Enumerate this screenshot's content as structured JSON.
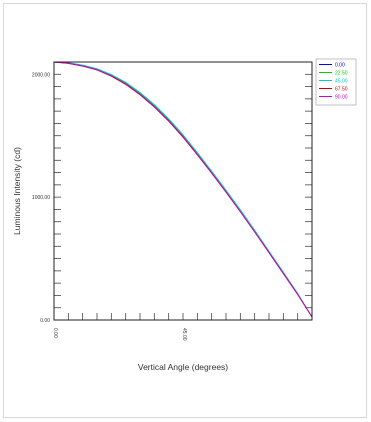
{
  "chart_data": {
    "type": "line",
    "xlabel": "Vertical Angle (degrees)",
    "ylabel": "Luminous Intensity (cd)",
    "xlim": [
      0,
      90
    ],
    "ylim": [
      0,
      2100
    ],
    "x_ticks": [
      "0.00",
      "45.00"
    ],
    "y_ticks": [
      "0.00",
      "1000.00",
      "2000.00"
    ],
    "grid": false,
    "legend_position": "top-right",
    "series": [
      {
        "name": "0.00",
        "color": "#0000ff",
        "x": [
          0,
          5,
          10,
          15,
          20,
          25,
          30,
          35,
          40,
          45,
          50,
          55,
          60,
          65,
          70,
          75,
          80,
          85,
          90
        ],
        "values": [
          2100,
          2090,
          2070,
          2040,
          1990,
          1925,
          1840,
          1740,
          1625,
          1495,
          1350,
          1200,
          1045,
          885,
          720,
          550,
          380,
          210,
          25
        ]
      },
      {
        "name": "22.50",
        "color": "#00cc00",
        "x": [
          0,
          5,
          10,
          15,
          20,
          25,
          30,
          35,
          40,
          45,
          50,
          55,
          60,
          65,
          70,
          75,
          80,
          85,
          90
        ],
        "values": [
          2100,
          2092,
          2072,
          2043,
          1994,
          1930,
          1846,
          1747,
          1632,
          1502,
          1357,
          1207,
          1052,
          892,
          727,
          556,
          386,
          214,
          25
        ]
      },
      {
        "name": "45.00",
        "color": "#00cccc",
        "x": [
          0,
          5,
          10,
          15,
          20,
          25,
          30,
          35,
          40,
          45,
          50,
          55,
          60,
          65,
          70,
          75,
          80,
          85,
          90
        ],
        "values": [
          2100,
          2094,
          2075,
          2046,
          1998,
          1935,
          1852,
          1753,
          1638,
          1508,
          1363,
          1212,
          1057,
          897,
          731,
          560,
          390,
          217,
          25
        ]
      },
      {
        "name": "67.50",
        "color": "#cc0000",
        "x": [
          0,
          5,
          10,
          15,
          20,
          25,
          30,
          35,
          40,
          45,
          50,
          55,
          60,
          65,
          70,
          75,
          80,
          85,
          90
        ],
        "values": [
          2100,
          2088,
          2066,
          2035,
          1984,
          1918,
          1833,
          1733,
          1618,
          1488,
          1344,
          1195,
          1040,
          881,
          716,
          547,
          378,
          208,
          25
        ]
      },
      {
        "name": "90.00",
        "color": "#cc00cc",
        "x": [
          0,
          5,
          10,
          15,
          20,
          25,
          30,
          35,
          40,
          45,
          50,
          55,
          60,
          65,
          70,
          75,
          80,
          85,
          90
        ],
        "values": [
          2100,
          2090,
          2068,
          2038,
          1987,
          1922,
          1837,
          1737,
          1622,
          1492,
          1348,
          1198,
          1043,
          884,
          718,
          549,
          380,
          209,
          25
        ]
      }
    ]
  }
}
